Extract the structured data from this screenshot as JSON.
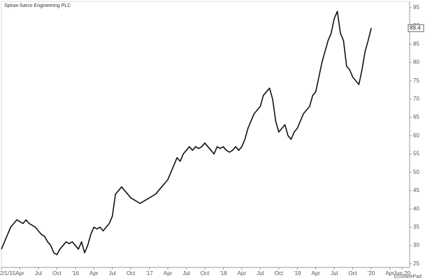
{
  "chart_data": {
    "type": "line",
    "title": "Spirax-Sarco Engineering PLC",
    "credit": "(c)SharePad",
    "color": "#111111",
    "grid": false,
    "values": [
      29,
      31,
      33,
      35,
      36,
      37,
      36.5,
      36,
      37,
      36,
      35.5,
      35,
      34,
      33,
      32.5,
      31,
      30,
      28,
      27.5,
      29,
      30,
      31,
      30.5,
      31,
      30,
      29,
      31,
      28,
      30,
      33,
      35,
      34.5,
      35,
      34,
      35,
      36,
      38,
      44,
      45,
      46,
      45,
      44,
      43,
      42.5,
      42,
      41.5,
      42,
      42.5,
      43,
      43.5,
      44,
      45,
      46,
      47,
      48,
      50,
      52,
      54,
      53,
      55,
      56,
      57,
      56,
      57,
      56.5,
      57,
      58,
      57,
      56,
      55,
      57,
      56.5,
      57,
      56,
      55.5,
      56,
      57,
      56,
      57,
      59,
      62,
      64,
      66,
      67,
      68,
      71,
      72,
      73,
      70,
      64,
      61,
      62,
      63,
      60,
      59,
      61,
      62,
      64,
      66,
      67,
      68,
      71,
      72,
      76,
      80,
      83,
      86,
      88,
      92,
      94,
      88,
      86,
      79,
      78,
      76,
      75,
      74,
      78,
      83,
      86,
      89.4
    ],
    "xlim": [
      0,
      132
    ],
    "xticks": [
      {
        "value": 0,
        "label": "2/1/15"
      },
      {
        "value": 6,
        "label": "Apr"
      },
      {
        "value": 12,
        "label": "Jul"
      },
      {
        "value": 18,
        "label": "Oct"
      },
      {
        "value": 24,
        "label": "'16"
      },
      {
        "value": 30,
        "label": "Apr"
      },
      {
        "value": 36,
        "label": "Jul"
      },
      {
        "value": 42,
        "label": "Oct"
      },
      {
        "value": 48,
        "label": "'17"
      },
      {
        "value": 54,
        "label": "Apr"
      },
      {
        "value": 60,
        "label": "Jul"
      },
      {
        "value": 66,
        "label": "Oct"
      },
      {
        "value": 72,
        "label": "'18"
      },
      {
        "value": 78,
        "label": "Apr"
      },
      {
        "value": 84,
        "label": "Jul"
      },
      {
        "value": 90,
        "label": "Oct"
      },
      {
        "value": 96,
        "label": "'19"
      },
      {
        "value": 102,
        "label": "Apr"
      },
      {
        "value": 108,
        "label": "Jul"
      },
      {
        "value": 114,
        "label": "Oct"
      },
      {
        "value": 120,
        "label": "'20"
      },
      {
        "value": 126,
        "label": "Apr"
      },
      {
        "value": 130,
        "label": "Jun 20"
      }
    ],
    "ylim": [
      24,
      96.7
    ],
    "yticks": [
      25,
      30,
      35,
      40,
      45,
      50,
      55,
      60,
      65,
      70,
      75,
      80,
      85,
      90,
      95
    ]
  }
}
